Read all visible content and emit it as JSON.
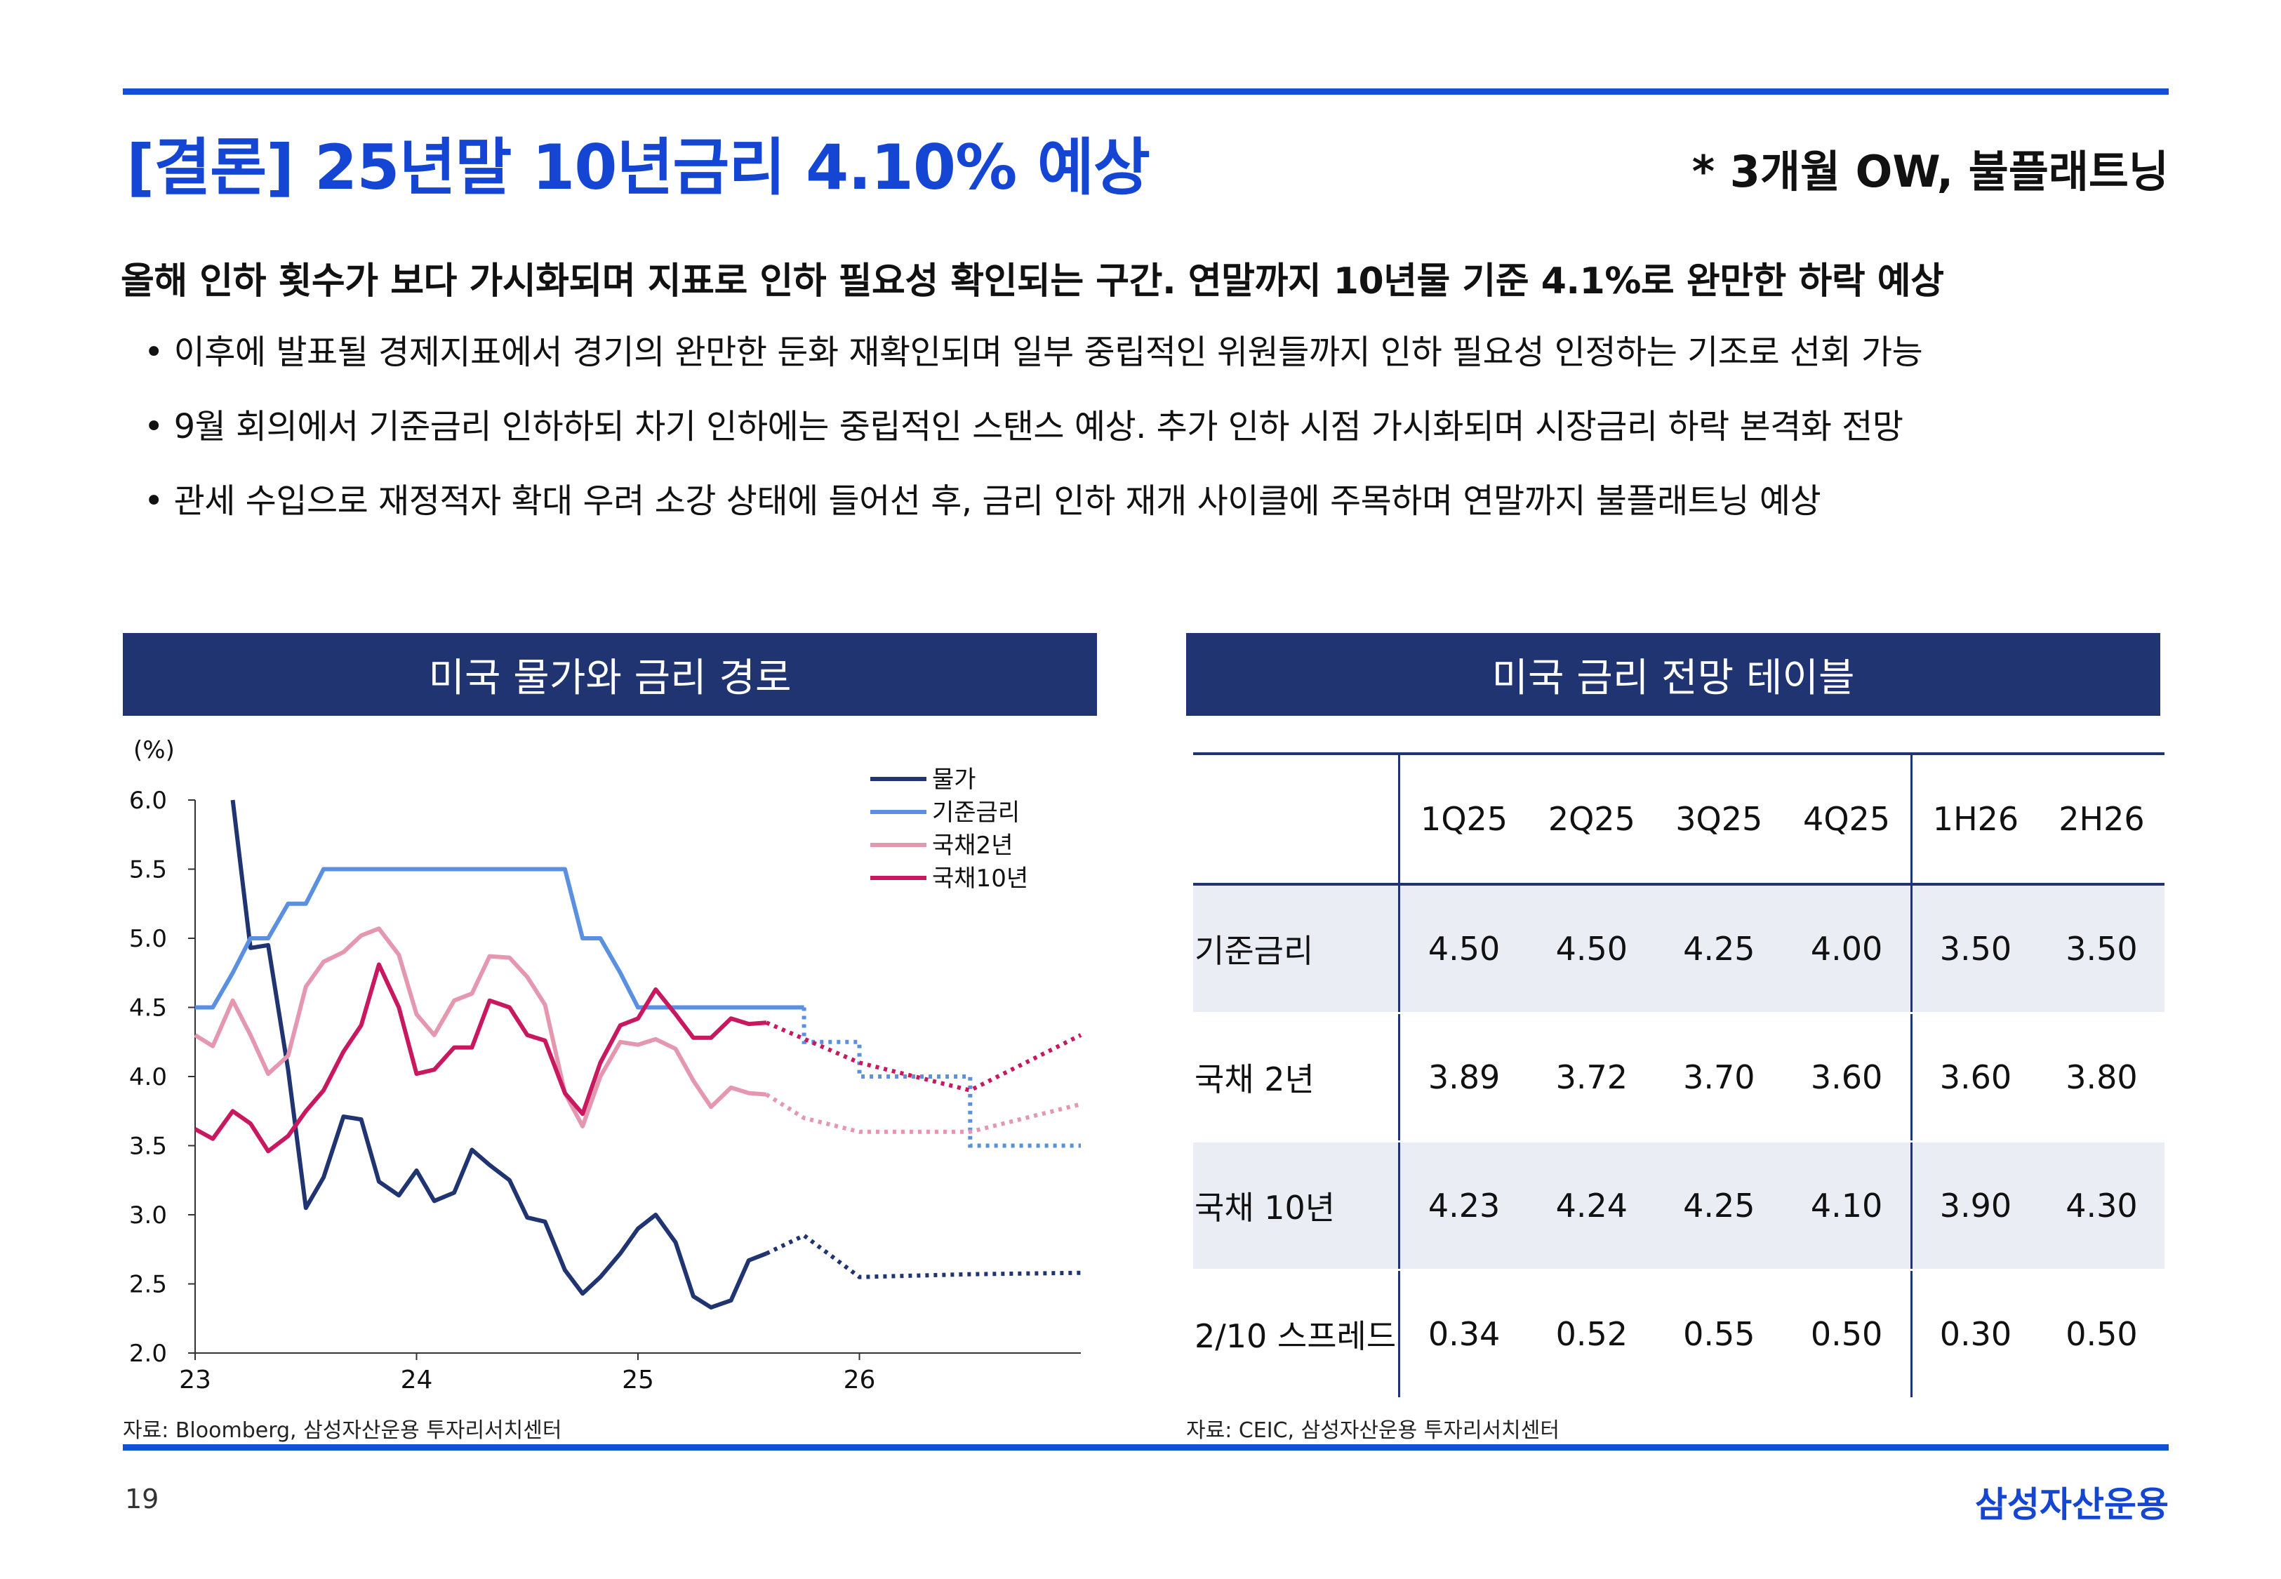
{
  "header": {
    "title": "[결론] 25년말 10년금리 4.10% 예상",
    "rating": "* 3개월 OW, 불플래트닝"
  },
  "lead": "올해 인하 횟수가 보다 가시화되며 지표로 인하 필요성 확인되는 구간. 연말까지 10년물 기준 4.1%로 완만한 하락 예상",
  "bullets": [
    "이후에 발표될 경제지표에서 경기의 완만한 둔화 재확인되며 일부 중립적인 위원들까지 인하 필요성 인정하는 기조로 선회 가능",
    "9월 회의에서 기준금리 인하하되 차기 인하에는 중립적인 스탠스 예상. 추가 인하 시점 가시화되며 시장금리 하락 본격화 전망",
    "관세 수입으로 재정적자 확대 우려 소강 상태에 들어선 후, 금리 인하 재개 사이클에 주목하며 연말까지 불플래트닝 예상"
  ],
  "left_panel": {
    "title": "미국 물가와 금리 경로",
    "source": "자료: Bloomberg, 삼성자산운용 투자리서치센터"
  },
  "right_panel": {
    "title": "미국 금리 전망 테이블",
    "source": "자료: CEIC, 삼성자산운용 투자리서치센터"
  },
  "footer": {
    "page_number": "19",
    "logo": "삼성자산운용"
  },
  "colors": {
    "accent_blue": "#1546d3",
    "panel_navy": "#1f3470",
    "cpi": "#1f3470",
    "policy_rate": "#5b8fe0",
    "t2y": "#e597b0",
    "t10y": "#c8185f"
  },
  "chart_data": [
    {
      "type": "line",
      "unit_label": "(%)",
      "ylim": [
        2.0,
        6.0
      ],
      "y_ticks": [
        "6.0",
        "5.5",
        "5.0",
        "4.5",
        "4.0",
        "3.5",
        "3.0",
        "2.5",
        "2.0"
      ],
      "x_ticks": [
        "23",
        "24",
        "25",
        "26"
      ],
      "xlim": [
        2023.0,
        2027.0
      ],
      "legend_position": "top-right",
      "forecast_style": "dotted",
      "series": [
        {
          "name": "물가",
          "color": "#1f3470",
          "actual": [
            [
              2023.17,
              6.0
            ],
            [
              2023.25,
              4.93
            ],
            [
              2023.33,
              4.95
            ],
            [
              2023.42,
              4.05
            ],
            [
              2023.5,
              3.05
            ],
            [
              2023.58,
              3.27
            ],
            [
              2023.67,
              3.71
            ],
            [
              2023.75,
              3.69
            ],
            [
              2023.83,
              3.24
            ],
            [
              2023.92,
              3.14
            ],
            [
              2024.0,
              3.32
            ],
            [
              2024.08,
              3.1
            ],
            [
              2024.17,
              3.16
            ],
            [
              2024.25,
              3.47
            ],
            [
              2024.33,
              3.36
            ],
            [
              2024.42,
              3.25
            ],
            [
              2024.5,
              2.98
            ],
            [
              2024.58,
              2.95
            ],
            [
              2024.67,
              2.6
            ],
            [
              2024.75,
              2.43
            ],
            [
              2024.83,
              2.55
            ],
            [
              2024.92,
              2.72
            ],
            [
              2025.0,
              2.9
            ],
            [
              2025.08,
              3.0
            ],
            [
              2025.17,
              2.8
            ],
            [
              2025.25,
              2.41
            ],
            [
              2025.33,
              2.33
            ],
            [
              2025.42,
              2.38
            ],
            [
              2025.5,
              2.67
            ],
            [
              2025.58,
              2.72
            ]
          ],
          "forecast": [
            [
              2025.58,
              2.72
            ],
            [
              2025.75,
              2.85
            ],
            [
              2026.0,
              2.55
            ],
            [
              2026.5,
              2.57
            ],
            [
              2027.0,
              2.58
            ]
          ]
        },
        {
          "name": "기준금리",
          "color": "#5b8fe0",
          "actual": [
            [
              2023.0,
              4.5
            ],
            [
              2023.08,
              4.5
            ],
            [
              2023.17,
              4.75
            ],
            [
              2023.25,
              5.0
            ],
            [
              2023.33,
              5.0
            ],
            [
              2023.42,
              5.25
            ],
            [
              2023.5,
              5.25
            ],
            [
              2023.58,
              5.5
            ],
            [
              2023.67,
              5.5
            ],
            [
              2024.0,
              5.5
            ],
            [
              2024.5,
              5.5
            ],
            [
              2024.67,
              5.5
            ],
            [
              2024.75,
              5.0
            ],
            [
              2024.83,
              5.0
            ],
            [
              2024.92,
              4.75
            ],
            [
              2025.0,
              4.5
            ],
            [
              2025.5,
              4.5
            ],
            [
              2025.75,
              4.5
            ]
          ],
          "forecast": [
            [
              2025.75,
              4.5
            ],
            [
              2025.75,
              4.25
            ],
            [
              2026.0,
              4.25
            ],
            [
              2026.0,
              4.0
            ],
            [
              2026.5,
              4.0
            ],
            [
              2026.5,
              3.5
            ],
            [
              2027.0,
              3.5
            ]
          ]
        },
        {
          "name": "국채2년",
          "color": "#e597b0",
          "actual": [
            [
              2023.0,
              4.3
            ],
            [
              2023.08,
              4.22
            ],
            [
              2023.17,
              4.55
            ],
            [
              2023.25,
              4.3
            ],
            [
              2023.33,
              4.02
            ],
            [
              2023.42,
              4.15
            ],
            [
              2023.5,
              4.65
            ],
            [
              2023.58,
              4.83
            ],
            [
              2023.67,
              4.9
            ],
            [
              2023.75,
              5.02
            ],
            [
              2023.83,
              5.07
            ],
            [
              2023.92,
              4.88
            ],
            [
              2024.0,
              4.45
            ],
            [
              2024.08,
              4.3
            ],
            [
              2024.17,
              4.55
            ],
            [
              2024.25,
              4.6
            ],
            [
              2024.33,
              4.87
            ],
            [
              2024.42,
              4.86
            ],
            [
              2024.5,
              4.72
            ],
            [
              2024.58,
              4.52
            ],
            [
              2024.67,
              3.88
            ],
            [
              2024.75,
              3.64
            ],
            [
              2024.83,
              4.0
            ],
            [
              2024.92,
              4.25
            ],
            [
              2025.0,
              4.23
            ],
            [
              2025.08,
              4.27
            ],
            [
              2025.17,
              4.2
            ],
            [
              2025.25,
              3.97
            ],
            [
              2025.33,
              3.78
            ],
            [
              2025.42,
              3.92
            ],
            [
              2025.5,
              3.88
            ],
            [
              2025.58,
              3.87
            ]
          ],
          "forecast": [
            [
              2025.58,
              3.87
            ],
            [
              2025.75,
              3.7
            ],
            [
              2026.0,
              3.6
            ],
            [
              2026.5,
              3.6
            ],
            [
              2027.0,
              3.8
            ]
          ]
        },
        {
          "name": "국채10년",
          "color": "#c8185f",
          "actual": [
            [
              2023.0,
              3.62
            ],
            [
              2023.08,
              3.55
            ],
            [
              2023.17,
              3.75
            ],
            [
              2023.25,
              3.66
            ],
            [
              2023.33,
              3.46
            ],
            [
              2023.42,
              3.57
            ],
            [
              2023.5,
              3.75
            ],
            [
              2023.58,
              3.9
            ],
            [
              2023.67,
              4.18
            ],
            [
              2023.75,
              4.37
            ],
            [
              2023.83,
              4.81
            ],
            [
              2023.92,
              4.5
            ],
            [
              2024.0,
              4.02
            ],
            [
              2024.08,
              4.05
            ],
            [
              2024.17,
              4.21
            ],
            [
              2024.25,
              4.21
            ],
            [
              2024.33,
              4.55
            ],
            [
              2024.42,
              4.5
            ],
            [
              2024.5,
              4.3
            ],
            [
              2024.58,
              4.26
            ],
            [
              2024.67,
              3.88
            ],
            [
              2024.75,
              3.73
            ],
            [
              2024.83,
              4.1
            ],
            [
              2024.92,
              4.37
            ],
            [
              2025.0,
              4.42
            ],
            [
              2025.08,
              4.63
            ],
            [
              2025.17,
              4.45
            ],
            [
              2025.25,
              4.28
            ],
            [
              2025.33,
              4.28
            ],
            [
              2025.42,
              4.42
            ],
            [
              2025.5,
              4.38
            ],
            [
              2025.58,
              4.39
            ]
          ],
          "forecast": [
            [
              2025.58,
              4.39
            ],
            [
              2026.0,
              4.1
            ],
            [
              2026.5,
              3.9
            ],
            [
              2027.0,
              4.3
            ]
          ]
        }
      ]
    },
    {
      "type": "table",
      "columns": [
        "",
        "1Q25",
        "2Q25",
        "3Q25",
        "4Q25",
        "1H26",
        "2H26"
      ],
      "rows": [
        {
          "label": "기준금리",
          "values": [
            "4.50",
            "4.50",
            "4.25",
            "4.00",
            "3.50",
            "3.50"
          ]
        },
        {
          "label": "국채 2년",
          "values": [
            "3.89",
            "3.72",
            "3.70",
            "3.60",
            "3.60",
            "3.80"
          ]
        },
        {
          "label": "국채 10년",
          "values": [
            "4.23",
            "4.24",
            "4.25",
            "4.10",
            "3.90",
            "4.30"
          ]
        },
        {
          "label": "2/10 스프레드",
          "values": [
            "0.34",
            "0.52",
            "0.55",
            "0.50",
            "0.30",
            "0.50"
          ]
        }
      ]
    }
  ]
}
